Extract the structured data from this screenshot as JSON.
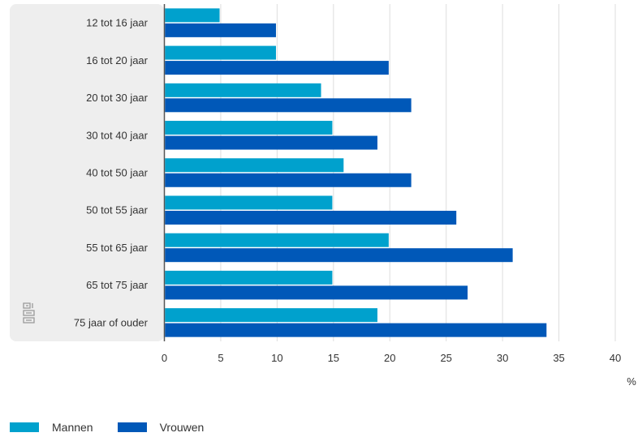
{
  "chart_data": {
    "type": "bar",
    "orientation": "horizontal",
    "categories": [
      "12 tot 16 jaar",
      "16 tot 20 jaar",
      "20 tot 30 jaar",
      "30 tot 40 jaar",
      "40 tot 50 jaar",
      "50 tot 55 jaar",
      "55 tot 65 jaar",
      "65 tot 75 jaar",
      "75 jaar of ouder"
    ],
    "series": [
      {
        "name": "Mannen",
        "color": "#00a1cd",
        "values": [
          4.9,
          9.9,
          13.9,
          14.9,
          15.9,
          14.9,
          19.9,
          14.9,
          18.9
        ]
      },
      {
        "name": "Vrouwen",
        "color": "#0058b8",
        "values": [
          9.9,
          19.9,
          21.9,
          18.9,
          21.9,
          25.9,
          30.9,
          26.9,
          33.9
        ]
      }
    ],
    "x_ticks": [
      "0",
      "5",
      "10",
      "15",
      "20",
      "25",
      "30",
      "35",
      "40"
    ],
    "xlim": [
      0,
      40
    ],
    "unit_label": "%",
    "grid": true,
    "legend_position": "bottom-left",
    "logo": "cbs-logo-icon"
  }
}
